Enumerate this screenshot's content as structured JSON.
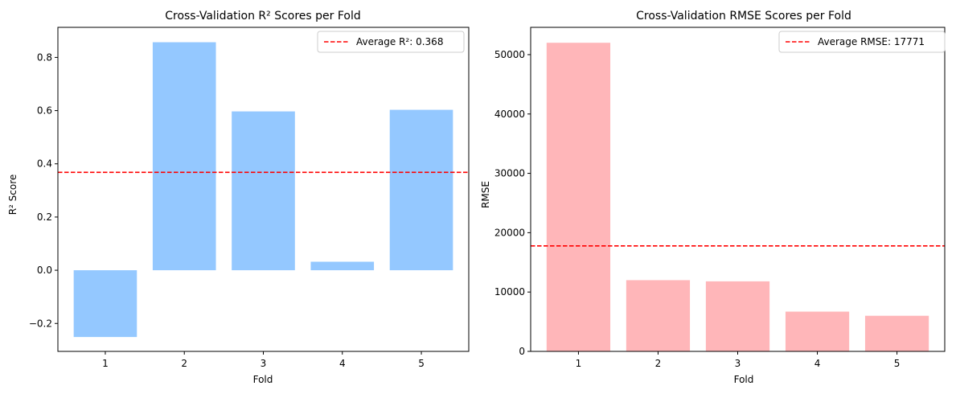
{
  "chart_data": [
    {
      "type": "bar",
      "title": "Cross-Validation R² Scores per Fold",
      "xlabel": "Fold",
      "ylabel": "R² Score",
      "categories": [
        "1",
        "2",
        "3",
        "4",
        "5"
      ],
      "values": [
        -0.251,
        0.857,
        0.597,
        0.032,
        0.603
      ],
      "ylim": [
        -0.305,
        0.913
      ],
      "yticks": [
        -0.2,
        0.0,
        0.2,
        0.4,
        0.6,
        0.8
      ],
      "ytick_labels": [
        "−0.2",
        "0.0",
        "0.2",
        "0.4",
        "0.6",
        "0.8"
      ],
      "bar_color": "#94c8ff",
      "reference_line": {
        "value": 0.368,
        "color": "#ff0000",
        "label": "Average R²: 0.368"
      },
      "legend_position": "top-right",
      "grid": false
    },
    {
      "type": "bar",
      "title": "Cross-Validation RMSE Scores per Fold",
      "xlabel": "Fold",
      "ylabel": "RMSE",
      "categories": [
        "1",
        "2",
        "3",
        "4",
        "5"
      ],
      "values": [
        52000,
        12000,
        11800,
        6700,
        6000
      ],
      "ylim": [
        0,
        54600
      ],
      "yticks": [
        0,
        10000,
        20000,
        30000,
        40000,
        50000
      ],
      "ytick_labels": [
        "0",
        "10000",
        "20000",
        "30000",
        "40000",
        "50000"
      ],
      "bar_color": "#ffb6b9",
      "reference_line": {
        "value": 17771,
        "color": "#ff0000",
        "label": "Average RMSE: 17771"
      },
      "legend_position": "top-right",
      "grid": false
    }
  ]
}
